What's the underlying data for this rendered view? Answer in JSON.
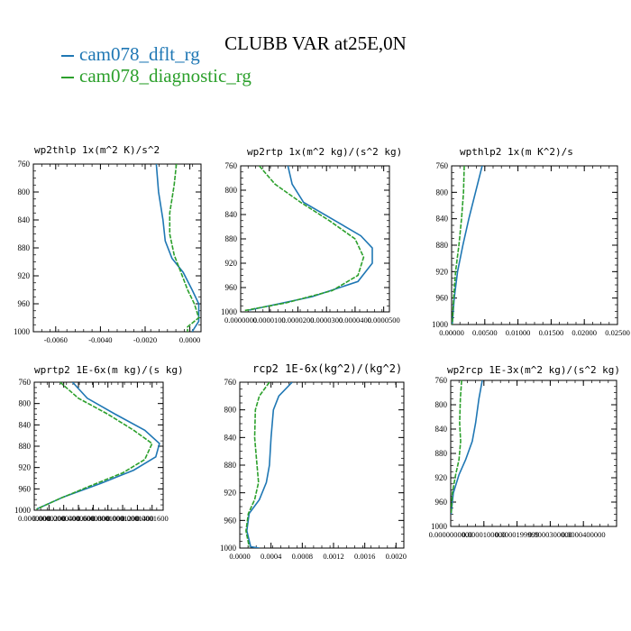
{
  "figure_title": "CLUBB VAR at25E,0N",
  "legend": [
    {
      "name": "cam078_dflt_rg",
      "color": "#1f77b4"
    },
    {
      "name": "cam078_diagnostic_rg",
      "color": "#2ca02c"
    }
  ],
  "chart_data": [
    {
      "type": "line",
      "title": "wp2thlp  1x(m^2 K)/s^2",
      "y_reversed": true,
      "ylim": [
        760,
        1000
      ],
      "xlim": [
        -0.007,
        0.0005
      ],
      "yticks": [
        "760",
        "800",
        "840",
        "880",
        "920",
        "960",
        "1000"
      ],
      "xticks": [
        "-0.0060",
        "-0.0040",
        "-0.0020",
        "0.0000"
      ],
      "xtick_values": [
        -0.006,
        -0.004,
        -0.002,
        0.0
      ],
      "ytick_values": [
        760,
        800,
        840,
        880,
        920,
        960,
        1000
      ],
      "series": [
        {
          "name": "cam078_dflt_rg",
          "color": "#1f77b4",
          "points": [
            [
              -0.0015,
              760
            ],
            [
              -0.0014,
              800
            ],
            [
              -0.0012,
              840
            ],
            [
              -0.0011,
              870
            ],
            [
              -0.0008,
              895
            ],
            [
              -0.0003,
              915
            ],
            [
              0.0001,
              940
            ],
            [
              0.0004,
              960
            ],
            [
              0.0004,
              985
            ],
            [
              0.0001,
              1000
            ]
          ]
        },
        {
          "name": "cam078_diagnostic_rg",
          "color": "#2ca02c",
          "points": [
            [
              -0.0006,
              760
            ],
            [
              -0.0007,
              790
            ],
            [
              -0.0009,
              830
            ],
            [
              -0.0009,
              860
            ],
            [
              -0.0007,
              890
            ],
            [
              -0.0004,
              915
            ],
            [
              -0.0001,
              940
            ],
            [
              0.0002,
              960
            ],
            [
              0.0004,
              980
            ],
            [
              -0.0001,
              993
            ],
            [
              -0.0001,
              1000
            ]
          ]
        }
      ]
    },
    {
      "type": "line",
      "title": "wp2rtp  1x(m^2 kg)/(s^2 kg)",
      "y_reversed": true,
      "ylim": [
        760,
        1000
      ],
      "xlim": [
        0.0,
        5.2e-05
      ],
      "yticks": [
        "760",
        "800",
        "840",
        "880",
        "920",
        "960",
        "1000"
      ],
      "xticks": [
        "0.0000000",
        "0.0000100",
        "0.0000200",
        "0.0000300",
        "0.0000400",
        "0.0000500"
      ],
      "xtick_values": [
        0.0,
        1e-05,
        2e-05,
        3e-05,
        4e-05,
        5e-05
      ],
      "ytick_values": [
        760,
        800,
        840,
        880,
        920,
        960,
        1000
      ],
      "series": [
        {
          "name": "cam078_dflt_rg",
          "color": "#1f77b4",
          "points": [
            [
              1.65e-05,
              760
            ],
            [
              1.8e-05,
              790
            ],
            [
              2.2e-05,
              820
            ],
            [
              3.3e-05,
              850
            ],
            [
              4.2e-05,
              875
            ],
            [
              4.6e-05,
              895
            ],
            [
              4.6e-05,
              920
            ],
            [
              4.1e-05,
              950
            ],
            [
              2.5e-05,
              975
            ],
            [
              3e-06,
              997
            ]
          ]
        },
        {
          "name": "cam078_diagnostic_rg",
          "color": "#2ca02c",
          "points": [
            [
              6.5e-06,
              760
            ],
            [
              1.2e-05,
              790
            ],
            [
              2.1e-05,
              820
            ],
            [
              3.1e-05,
              850
            ],
            [
              4e-05,
              880
            ],
            [
              4.3e-05,
              910
            ],
            [
              4.1e-05,
              940
            ],
            [
              3.2e-05,
              965
            ],
            [
              1.6e-05,
              985
            ],
            [
              1e-06,
              998
            ]
          ]
        }
      ]
    },
    {
      "type": "line",
      "title": "wpthlp2  1x(m K^2)/s",
      "y_reversed": true,
      "ylim": [
        760,
        1000
      ],
      "xlim": [
        0.0,
        0.025
      ],
      "yticks": [
        "760",
        "800",
        "840",
        "880",
        "920",
        "960",
        "1000"
      ],
      "xticks": [
        "0.00000",
        "0.00500",
        "0.01000",
        "0.01500",
        "0.02000",
        "0.02500"
      ],
      "xtick_values": [
        0.0,
        0.005,
        0.01,
        0.015,
        0.02,
        0.025
      ],
      "ytick_values": [
        760,
        800,
        840,
        880,
        920,
        960,
        1000
      ],
      "series": [
        {
          "name": "cam078_dflt_rg",
          "color": "#1f77b4",
          "points": [
            [
              0.0046,
              760
            ],
            [
              0.0036,
              800
            ],
            [
              0.0026,
              840
            ],
            [
              0.0017,
              880
            ],
            [
              0.0009,
              920
            ],
            [
              0.0004,
              960
            ],
            [
              0.0001,
              1000
            ]
          ]
        },
        {
          "name": "cam078_diagnostic_rg",
          "color": "#2ca02c",
          "points": [
            [
              0.0019,
              760
            ],
            [
              0.0018,
              800
            ],
            [
              0.0015,
              840
            ],
            [
              0.0011,
              880
            ],
            [
              0.0006,
              920
            ],
            [
              0.0003,
              960
            ],
            [
              0.0001,
              1000
            ]
          ]
        }
      ]
    },
    {
      "type": "line",
      "title": "wprtp2  1E-6x(m kg)/(s kg)",
      "y_reversed": true,
      "ylim": [
        760,
        1000
      ],
      "xlim": [
        0.0,
        0.000175
      ],
      "yticks": [
        "760",
        "800",
        "840",
        "880",
        "920",
        "960",
        "1000"
      ],
      "xticks": [
        "0.0000000",
        "0.0000200",
        "0.0000400",
        "0.0000600",
        "0.0000800",
        "0.0001000",
        "0.0001200",
        "0.0001400",
        "0.0001600"
      ],
      "xtick_values": [
        0.0,
        2e-05,
        4e-05,
        6e-05,
        8e-05,
        0.0001,
        0.00012,
        0.00014,
        0.00016
      ],
      "ytick_values": [
        760,
        800,
        840,
        880,
        920,
        960,
        1000
      ],
      "series": [
        {
          "name": "cam078_dflt_rg",
          "color": "#1f77b4",
          "points": [
            [
              5.2e-05,
              760
            ],
            [
              7.2e-05,
              790
            ],
            [
              0.00011,
              820
            ],
            [
              0.00015,
              850
            ],
            [
              0.00017,
              875
            ],
            [
              0.000165,
              900
            ],
            [
              0.000135,
              925
            ],
            [
              9e-05,
              950
            ],
            [
              4e-05,
              975
            ],
            [
              3e-06,
              998
            ]
          ]
        },
        {
          "name": "cam078_diagnostic_rg",
          "color": "#2ca02c",
          "points": [
            [
              3.5e-05,
              760
            ],
            [
              6e-05,
              790
            ],
            [
              0.0001,
              820
            ],
            [
              0.000135,
              850
            ],
            [
              0.00016,
              875
            ],
            [
              0.00015,
              905
            ],
            [
              0.00012,
              930
            ],
            [
              7.5e-05,
              955
            ],
            [
              3.5e-05,
              978
            ],
            [
              3e-06,
              998
            ]
          ]
        }
      ]
    },
    {
      "type": "line",
      "title": "rcp2  1E-6x(kg^2)/(kg^2)",
      "y_reversed": true,
      "ylim": [
        760,
        1000
      ],
      "xlim": [
        0.0,
        0.0021
      ],
      "yticks": [
        "760",
        "800",
        "840",
        "880",
        "920",
        "960",
        "1000"
      ],
      "xticks": [
        "0.0000",
        "0.0004",
        "0.0008",
        "0.0012",
        "0.0016",
        "0.0020"
      ],
      "xtick_values": [
        0.0,
        0.0004,
        0.0008,
        0.0012,
        0.0016,
        0.002
      ],
      "ytick_values": [
        760,
        800,
        840,
        880,
        920,
        960,
        1000
      ],
      "series": [
        {
          "name": "cam078_dflt_rg",
          "color": "#1f77b4",
          "points": [
            [
              0.00067,
              760
            ],
            [
              0.0005,
              780
            ],
            [
              0.00043,
              800
            ],
            [
              0.0004,
              840
            ],
            [
              0.00038,
              880
            ],
            [
              0.00034,
              905
            ],
            [
              0.00025,
              930
            ],
            [
              0.00012,
              950
            ],
            [
              9e-05,
              975
            ],
            [
              0.00014,
              998
            ],
            [
              0.00025,
              1000
            ]
          ]
        },
        {
          "name": "cam078_diagnostic_rg",
          "color": "#2ca02c",
          "points": [
            [
              0.00038,
              760
            ],
            [
              0.00025,
              780
            ],
            [
              0.0002,
              800
            ],
            [
              0.00019,
              840
            ],
            [
              0.00022,
              880
            ],
            [
              0.00024,
              905
            ],
            [
              0.00019,
              930
            ],
            [
              0.00011,
              950
            ],
            [
              8e-05,
              975
            ],
            [
              0.00012,
              998
            ]
          ]
        }
      ]
    },
    {
      "type": "line",
      "title": "wp2rcp  1E-3x(m^2 kg)/(s^2 kg)",
      "y_reversed": true,
      "ylim": [
        760,
        1000
      ],
      "xlim": [
        0.0,
        5e-05
      ],
      "yticks": [
        "760",
        "800",
        "840",
        "880",
        "920",
        "960",
        "1000"
      ],
      "xticks": [
        "0.0000000000",
        "0.0000100000",
        "0.0000199999",
        "0.0000300000",
        "0.0000400000"
      ],
      "xtick_values": [
        0.0,
        1e-05,
        2e-05,
        3e-05,
        4e-05
      ],
      "ytick_values": [
        760,
        800,
        840,
        880,
        920,
        960,
        1000
      ],
      "series": [
        {
          "name": "cam078_dflt_rg",
          "color": "#1f77b4",
          "points": [
            [
              9.5e-06,
              760
            ],
            [
              8.5e-06,
              790
            ],
            [
              7.5e-06,
              830
            ],
            [
              6.5e-06,
              860
            ],
            [
              4.5e-06,
              890
            ],
            [
              2.5e-06,
              915
            ],
            [
              8e-07,
              945
            ],
            [
              1e-07,
              980
            ]
          ]
        },
        {
          "name": "cam078_diagnostic_rg",
          "color": "#2ca02c",
          "points": [
            [
              3.3e-06,
              760
            ],
            [
              2.9e-06,
              790
            ],
            [
              2.7e-06,
              830
            ],
            [
              3e-06,
              860
            ],
            [
              2.5e-06,
              890
            ],
            [
              1.5e-06,
              915
            ],
            [
              5e-07,
              945
            ],
            [
              1e-07,
              980
            ]
          ]
        }
      ]
    }
  ]
}
